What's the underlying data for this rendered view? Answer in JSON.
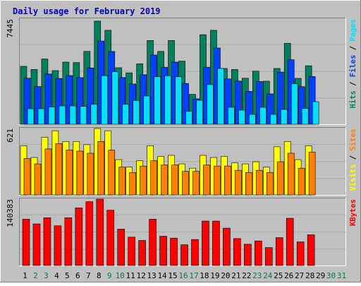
{
  "colors": {
    "background": "#c0c0c0",
    "border_light": "#ffffff",
    "border_dark": "#808080",
    "title": "#0000cc",
    "weekday_label": "#000000",
    "weekend_label": "#008040",
    "hits": "#00805c",
    "files": "#0040ff",
    "pages": "#00e0ff",
    "visits": "#ffff00",
    "sites": "#ff8000",
    "kbytes": "#ff0000"
  },
  "chart_data": {
    "type": "bar",
    "title": "Daily usage for February 2019",
    "categories": [
      "1",
      "2",
      "3",
      "4",
      "5",
      "6",
      "7",
      "8",
      "9",
      "10",
      "11",
      "12",
      "13",
      "14",
      "15",
      "16",
      "17",
      "18",
      "19",
      "20",
      "21",
      "22",
      "23",
      "24",
      "25",
      "26",
      "27",
      "28",
      "29",
      "30",
      "31"
    ],
    "weekend_days": [
      "2",
      "3",
      "9",
      "10",
      "16",
      "17",
      "23",
      "24",
      "30",
      "31"
    ],
    "panels": [
      {
        "id": "hits-files-pages",
        "ymax_label": "7445",
        "ylim": [
          0,
          7445
        ],
        "grid": true,
        "legend": [
          {
            "name": "Hits",
            "color_key": "hits"
          },
          {
            "name": "Files",
            "color_key": "files"
          },
          {
            "name": "Pages",
            "color_key": "pages"
          }
        ],
        "series": [
          {
            "name": "Hits",
            "color_key": "hits",
            "values": [
              4100,
              3880,
              4620,
              3800,
              4400,
              4370,
              5160,
              7300,
              6650,
              4000,
              3640,
              4280,
              5930,
              5160,
              5930,
              4470,
              2120,
              6340,
              6650,
              3950,
              3880,
              3260,
              3760,
              3050,
              3950,
              5730,
              3250,
              4140,
              0,
              0,
              0
            ]
          },
          {
            "name": "Files",
            "color_key": "files",
            "values": [
              3260,
              2670,
              3560,
              3240,
              3450,
              3300,
              3990,
              5890,
              5150,
              3310,
              2850,
              3510,
              4900,
              4040,
              4400,
              2890,
              1800,
              4040,
              5400,
              3210,
              3060,
              2330,
              3030,
              2150,
              3690,
              4570,
              2660,
              3380,
              0,
              0,
              0
            ]
          },
          {
            "name": "Pages",
            "color_key": "pages",
            "values": [
              1100,
              1100,
              1220,
              1300,
              1300,
              1270,
              1410,
              3440,
              3720,
              1410,
              1690,
              2000,
              3370,
              3440,
              3370,
              910,
              1700,
              2810,
              3950,
              1200,
              1000,
              700,
              1200,
              700,
              1050,
              2880,
              1130,
              1600,
              0,
              0,
              0
            ]
          }
        ]
      },
      {
        "id": "visits-sites",
        "ymax_label": "621",
        "ylim": [
          0,
          621
        ],
        "grid": true,
        "legend": [
          {
            "name": "Visits",
            "color_key": "visits"
          },
          {
            "name": "Sites",
            "color_key": "sites"
          }
        ],
        "series": [
          {
            "name": "Visits",
            "color_key": "visits",
            "values": [
              460,
              350,
              540,
              600,
              500,
              500,
              470,
              630,
              600,
              330,
              260,
              320,
              460,
              360,
              370,
              290,
              250,
              370,
              350,
              360,
              300,
              290,
              310,
              260,
              450,
              500,
              330,
              460,
              0,
              0,
              0
            ]
          },
          {
            "name": "Sites",
            "color_key": "sites",
            "values": [
              340,
              290,
              430,
              480,
              420,
              410,
              390,
              500,
              420,
              260,
              210,
              270,
              320,
              280,
              280,
              220,
              220,
              280,
              270,
              270,
              230,
              210,
              230,
              210,
              310,
              390,
              250,
              400,
              0,
              0,
              0
            ]
          }
        ]
      },
      {
        "id": "kbytes",
        "ymax_label": "140383",
        "ylim": [
          0,
          140383
        ],
        "grid": true,
        "legend": [
          {
            "name": "KBytes",
            "color_key": "kbytes"
          }
        ],
        "series": [
          {
            "name": "KBytes",
            "color_key": "kbytes",
            "values": [
              98000,
              88000,
              101000,
              84000,
              101000,
              122000,
              135000,
              141000,
              117000,
              77000,
              60000,
              53000,
              98000,
              62000,
              58000,
              44000,
              55000,
              94000,
              94000,
              79000,
              57000,
              45000,
              52000,
              38000,
              59000,
              100000,
              50000,
              65000,
              0,
              0,
              0
            ]
          }
        ]
      }
    ]
  }
}
